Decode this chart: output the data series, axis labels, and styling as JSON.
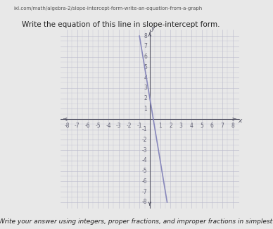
{
  "url_text": "ixl.com/math/algebra-2/slope-intercept-form-write-an-equation-from-a-graph",
  "title": "Write the equation of this line in slope-intercept form.",
  "subtitle": "Write your answer using integers, proper fractions, and improper fractions in simplest form.",
  "xmin": -8,
  "xmax": 8,
  "ymin": -8,
  "ymax": 8,
  "slope": -6,
  "intercept": 2,
  "line_color": "#8888bb",
  "grid_color": "#bbbbcc",
  "grid_color_dark": "#aaaaaa",
  "bg_color": "#d8d8d8",
  "page_bg": "#e8e8e8",
  "content_bg": "#f5f5f5",
  "graph_bg": "#e0dde8",
  "sidebar_color": "#5b9bd5",
  "axis_color": "#555566",
  "label_color": "#666677",
  "title_color": "#222222",
  "url_color": "#555555",
  "title_fontsize": 7.5,
  "subtitle_fontsize": 6.5,
  "tick_fontsize": 5.5,
  "url_fontsize": 5.0
}
